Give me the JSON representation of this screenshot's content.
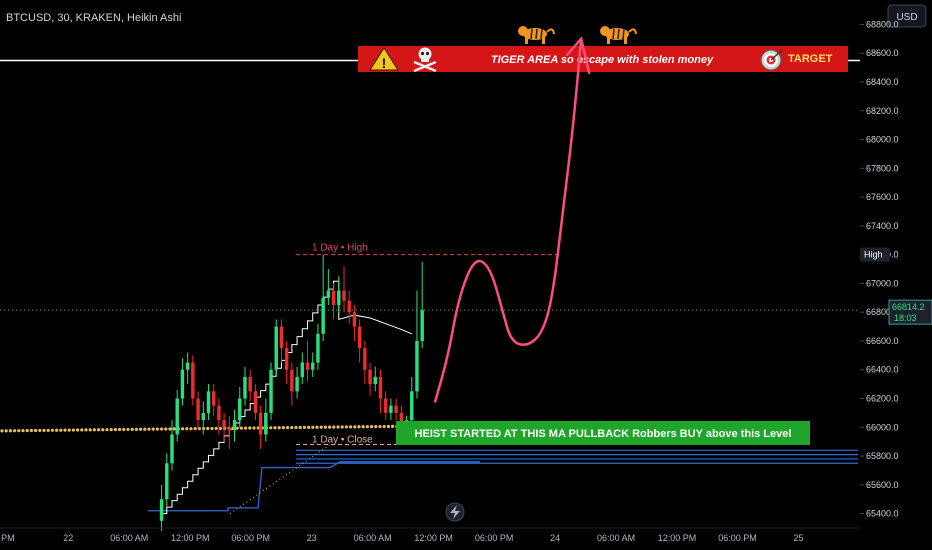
{
  "header": {
    "symbol_line": "BTCUSD, 30, KRAKEN, Heikin Ashi",
    "currency_button": "USD"
  },
  "colors": {
    "background": "#000000",
    "bull": "#26e07f",
    "bear": "#ef2b2b",
    "ma_dots": "#e6c05a",
    "vwap": "#ffffff",
    "price_line": "#4caf50",
    "target_banner": "#d41616",
    "heist_banner": "#1fa52a",
    "drawing": "#ff4d7d",
    "day_high": "#e0435a",
    "blue_levels": "#2e6bd6"
  },
  "annotations": {
    "target_banner_text": "TIGER AREA so escape with stolen money",
    "target_label": "TARGET",
    "heist_text": "HEIST STARTED AT THIS MA PULLBACK Robbers BUY above this Level",
    "day_high_label": "1 Day • High",
    "day_close_label": "1 Day • Close",
    "high_tag": "High",
    "last_price": "66814.2",
    "countdown": "18:03",
    "icons": [
      "warning-icon",
      "skull-icon",
      "tiger-icon",
      "target-icon",
      "flash-icon"
    ]
  },
  "chart_data": {
    "type": "candlestick",
    "title": "BTCUSD, 30, KRAKEN, Heikin Ashi",
    "yticks": [
      65400,
      65600,
      65800,
      66000,
      66200,
      66400,
      66600,
      66800,
      67000,
      67200,
      67400,
      67600,
      67800,
      68000,
      68200,
      68400,
      68600,
      68800
    ],
    "ytick_labels": [
      "65400.0",
      "65600.0",
      "65800.0",
      "66000.0",
      "66200.0",
      "66400.0",
      "66600.0",
      "66800.0",
      "67000.0",
      "67200.0",
      "67400.0",
      "67600.0",
      "67800.0",
      "68000.0",
      "68200.0",
      "68400.0",
      "68600.0",
      "68800.0"
    ],
    "ylim": [
      65300,
      68970
    ],
    "xticks": [
      {
        "label": "PM",
        "bar": -28.5
      },
      {
        "label": "22",
        "bar": -16.9
      },
      {
        "label": "06:00 AM",
        "bar": -5.2
      },
      {
        "label": "12:00 PM",
        "bar": 6.5
      },
      {
        "label": "06:00 PM",
        "bar": 18.1
      },
      {
        "label": "23",
        "bar": 29.8
      },
      {
        "label": "06:00 AM",
        "bar": 41.5
      },
      {
        "label": "12:00 PM",
        "bar": 53.2
      },
      {
        "label": "06:00 PM",
        "bar": 64.8
      },
      {
        "label": "24",
        "bar": 76.5
      },
      {
        "label": "06:00 AM",
        "bar": 88.2
      },
      {
        "label": "12:00 PM",
        "bar": 99.9
      },
      {
        "label": "06:00 PM",
        "bar": 111.5
      },
      {
        "label": "25",
        "bar": 123.2
      }
    ],
    "xrange": [
      -30,
      135
    ],
    "candles": [
      [
        65350,
        65500,
        65280,
        65600
      ],
      [
        65500,
        65750,
        65450,
        65820
      ],
      [
        65750,
        65950,
        65700,
        66050
      ],
      [
        65950,
        66200,
        65900,
        66260
      ],
      [
        66200,
        66400,
        66150,
        66480
      ],
      [
        66400,
        66450,
        66300,
        66520
      ],
      [
        66450,
        66200,
        66150,
        66500
      ],
      [
        66200,
        66050,
        65980,
        66250
      ],
      [
        66050,
        66100,
        65950,
        66180
      ],
      [
        66100,
        66250,
        66050,
        66300
      ],
      [
        66250,
        66150,
        66080,
        66300
      ],
      [
        66150,
        66050,
        65950,
        66200
      ],
      [
        66050,
        66000,
        65900,
        66100
      ],
      [
        66000,
        65980,
        65850,
        66080
      ],
      [
        65980,
        66050,
        65900,
        66120
      ],
      [
        66050,
        66200,
        66000,
        66280
      ],
      [
        66200,
        66350,
        66150,
        66420
      ],
      [
        66350,
        66250,
        66180,
        66400
      ],
      [
        66250,
        66100,
        66050,
        66300
      ],
      [
        66100,
        65950,
        65850,
        66150
      ],
      [
        65950,
        66100,
        65900,
        66200
      ],
      [
        66100,
        66400,
        66050,
        66450
      ],
      [
        66400,
        66700,
        66350,
        66750
      ],
      [
        66700,
        66550,
        66450,
        66750
      ],
      [
        66550,
        66400,
        66300,
        66600
      ],
      [
        66400,
        66250,
        66150,
        66450
      ],
      [
        66250,
        66350,
        66200,
        66420
      ],
      [
        66350,
        66450,
        66300,
        66520
      ],
      [
        66450,
        66400,
        66320,
        66600
      ],
      [
        66400,
        66450,
        66350,
        66520
      ],
      [
        66450,
        66650,
        66400,
        66720
      ],
      [
        66650,
        66900,
        66600,
        67200
      ],
      [
        66900,
        66950,
        66850,
        67100
      ],
      [
        66950,
        66850,
        66750,
        67000
      ],
      [
        66850,
        66950,
        66800,
        67050
      ],
      [
        66950,
        66880,
        66800,
        67120
      ],
      [
        66880,
        66800,
        66720,
        66950
      ],
      [
        66800,
        66700,
        66600,
        66850
      ],
      [
        66700,
        66550,
        66450,
        66750
      ],
      [
        66550,
        66400,
        66300,
        66600
      ],
      [
        66400,
        66300,
        66220,
        66450
      ],
      [
        66300,
        66350,
        66250,
        66420
      ],
      [
        66350,
        66200,
        66100,
        66400
      ],
      [
        66200,
        66100,
        66050,
        66250
      ],
      [
        66100,
        66150,
        66050,
        66200
      ],
      [
        66150,
        66100,
        66050,
        66200
      ],
      [
        66100,
        66000,
        65950,
        66150
      ],
      [
        66000,
        66050,
        65920,
        66080
      ],
      [
        66050,
        66250,
        66000,
        66350
      ],
      [
        66250,
        66600,
        66200,
        66950
      ],
      [
        66600,
        66814,
        66550,
        67150
      ]
    ],
    "ma_dots": [
      65980,
      65985,
      65990,
      65995,
      65998,
      66000,
      66002,
      66004,
      66006,
      66008,
      66010,
      66012,
      66014,
      66016,
      66018,
      66020
    ],
    "vwap_start": 65400,
    "day_high": 67200,
    "day_close": 65880,
    "last_price": 66814.2,
    "projection": [
      [
        53.5,
        66180
      ],
      [
        56,
        66500
      ],
      [
        58,
        66900
      ],
      [
        61,
        67180
      ],
      [
        64,
        67120
      ],
      [
        66.5,
        66800
      ],
      [
        68,
        66600
      ],
      [
        71,
        66560
      ],
      [
        74,
        66650
      ],
      [
        76,
        66900
      ],
      [
        78,
        67500
      ],
      [
        80,
        68100
      ],
      [
        81.5,
        68700
      ]
    ]
  }
}
